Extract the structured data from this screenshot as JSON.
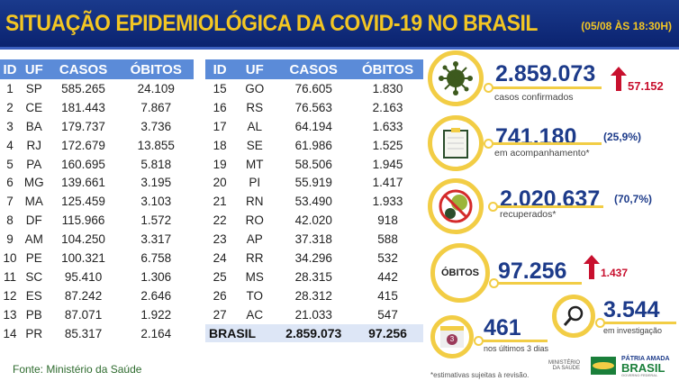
{
  "header": {
    "title": "SITUAÇÃO EPIDEMIOLÓGICA DA COVID-19 NO BRASIL",
    "date": "(05/08 ÀS 18:30H)"
  },
  "table": {
    "headers": [
      "ID",
      "UF",
      "CASOS",
      "ÓBITOS"
    ],
    "left": [
      [
        "1",
        "SP",
        "585.265",
        "24.109"
      ],
      [
        "2",
        "CE",
        "181.443",
        "7.867"
      ],
      [
        "3",
        "BA",
        "179.737",
        "3.736"
      ],
      [
        "4",
        "RJ",
        "172.679",
        "13.855"
      ],
      [
        "5",
        "PA",
        "160.695",
        "5.818"
      ],
      [
        "6",
        "MG",
        "139.661",
        "3.195"
      ],
      [
        "7",
        "MA",
        "125.459",
        "3.103"
      ],
      [
        "8",
        "DF",
        "115.966",
        "1.572"
      ],
      [
        "9",
        "AM",
        "104.250",
        "3.317"
      ],
      [
        "10",
        "PE",
        "100.321",
        "6.758"
      ],
      [
        "11",
        "SC",
        "95.410",
        "1.306"
      ],
      [
        "12",
        "ES",
        "87.242",
        "2.646"
      ],
      [
        "13",
        "PB",
        "87.071",
        "1.922"
      ],
      [
        "14",
        "PR",
        "85.317",
        "2.164"
      ]
    ],
    "right": [
      [
        "15",
        "GO",
        "76.605",
        "1.830"
      ],
      [
        "16",
        "RS",
        "76.563",
        "2.163"
      ],
      [
        "17",
        "AL",
        "64.194",
        "1.633"
      ],
      [
        "18",
        "SE",
        "61.986",
        "1.525"
      ],
      [
        "19",
        "MT",
        "58.506",
        "1.945"
      ],
      [
        "20",
        "PI",
        "55.919",
        "1.417"
      ],
      [
        "21",
        "RN",
        "53.490",
        "1.933"
      ],
      [
        "22",
        "RO",
        "42.020",
        "918"
      ],
      [
        "23",
        "AP",
        "37.318",
        "588"
      ],
      [
        "24",
        "RR",
        "34.296",
        "532"
      ],
      [
        "25",
        "MS",
        "28.315",
        "442"
      ],
      [
        "26",
        "TO",
        "28.312",
        "415"
      ],
      [
        "27",
        "AC",
        "21.033",
        "547"
      ]
    ],
    "total": {
      "label": "BRASIL",
      "casos": "2.859.073",
      "obitos": "97.256"
    }
  },
  "fonte": "Fonte: Ministério da Saúde",
  "stats": {
    "confirmados": {
      "value": "2.859.073",
      "label": "casos confirmados",
      "increase": "57.152"
    },
    "acompanhamento": {
      "value": "741.180",
      "pct": "(25,9%)",
      "label": "em acompanhamento*"
    },
    "recuperados": {
      "value": "2.020.637",
      "pct": "(70,7%)",
      "label": "recuperados*"
    },
    "obitos": {
      "badge": "ÓBITOS",
      "value": "97.256",
      "increase": "1.437"
    },
    "investigacao": {
      "value": "3.544",
      "label": "em investigação"
    },
    "ultimos": {
      "value": "461",
      "label": "nos últimos 3 dias",
      "calendar": "3"
    }
  },
  "footnote": "*estimativas sujeitas à revisão.",
  "ministerio": "MINISTÉRIO DA SAÚDE",
  "logo": {
    "line1": "PÁTRIA AMADA",
    "line2": "BRASIL",
    "line3": "GOVERNO FEDERAL"
  }
}
